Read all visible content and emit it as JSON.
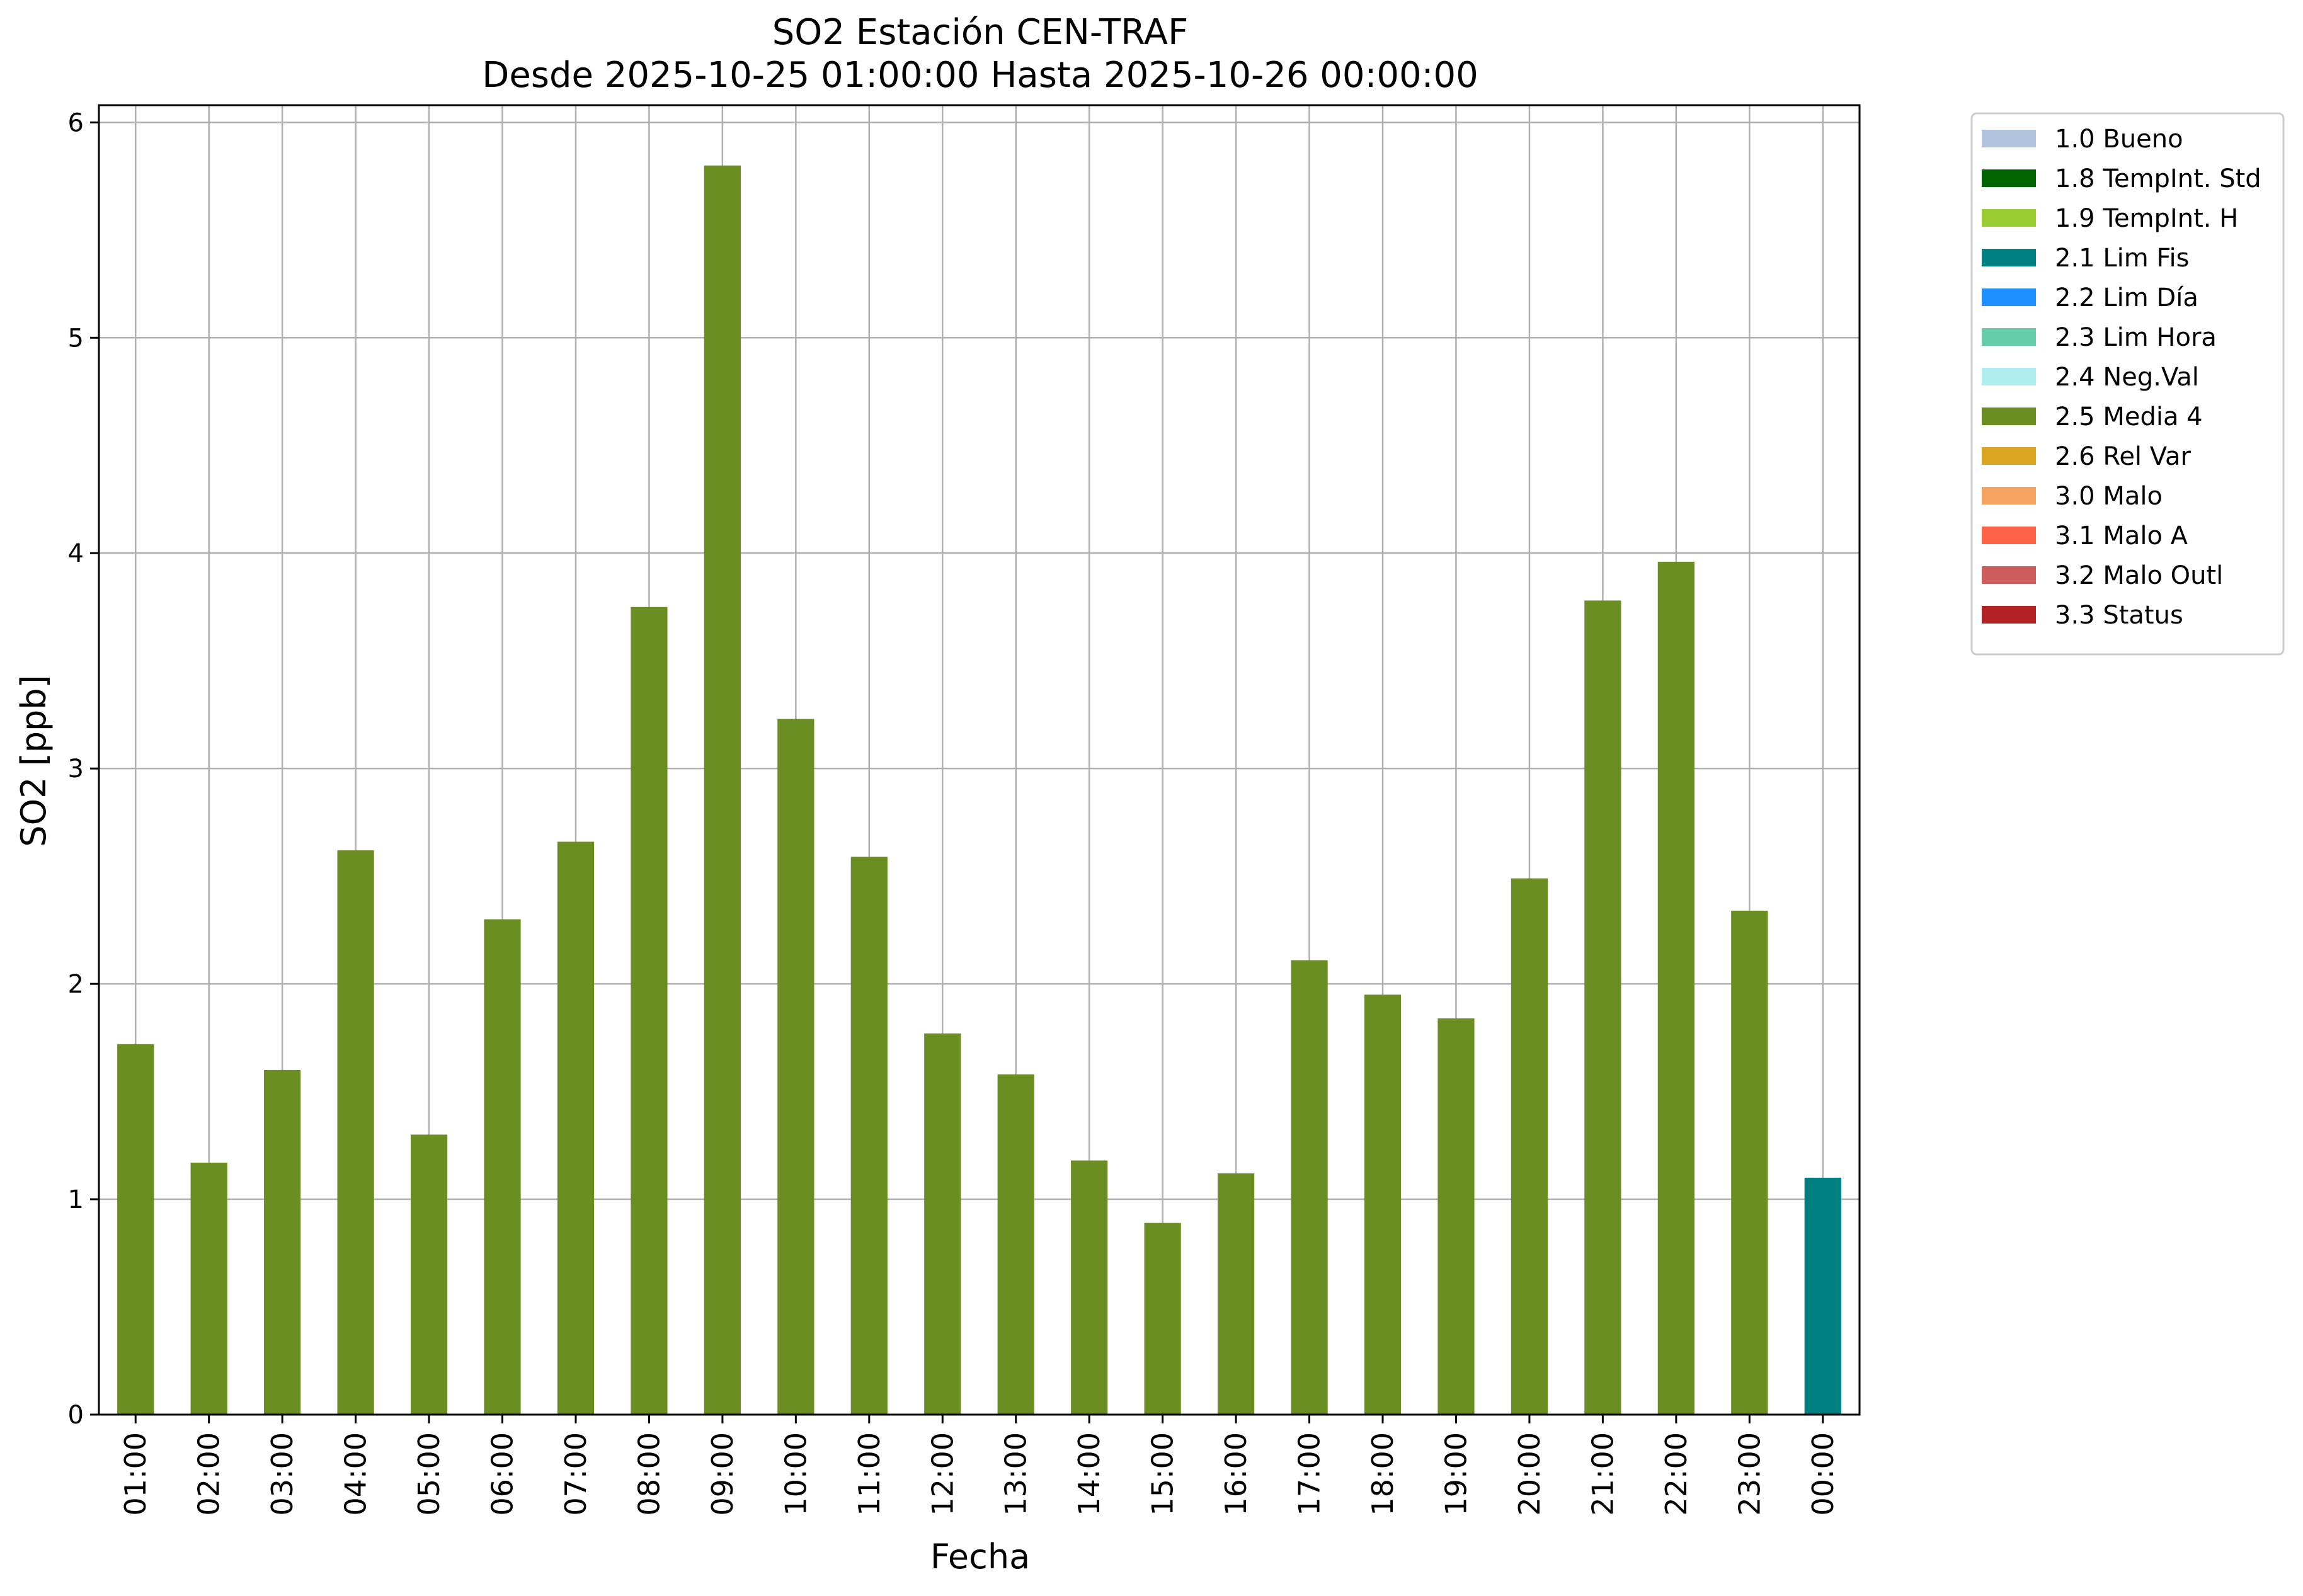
{
  "chart_data": {
    "type": "bar",
    "title": "SO2 Estación CEN-TRAF",
    "subtitle": "Desde 2025-10-25 01:00:00 Hasta 2025-10-26 00:00:00",
    "xlabel": "Fecha",
    "ylabel": "SO2 [ppb]",
    "ylim": [
      0,
      6.08
    ],
    "yticks": [
      0,
      1,
      2,
      3,
      4,
      5,
      6
    ],
    "grid": true,
    "legend_position": "outside-right-top",
    "categories": [
      "01:00",
      "02:00",
      "03:00",
      "04:00",
      "05:00",
      "06:00",
      "07:00",
      "08:00",
      "09:00",
      "10:00",
      "11:00",
      "12:00",
      "13:00",
      "14:00",
      "15:00",
      "16:00",
      "17:00",
      "18:00",
      "19:00",
      "20:00",
      "21:00",
      "22:00",
      "23:00",
      "00:00"
    ],
    "values": [
      1.72,
      1.17,
      1.6,
      2.62,
      1.3,
      2.3,
      2.66,
      3.75,
      5.8,
      3.23,
      2.59,
      1.77,
      1.58,
      1.18,
      0.89,
      1.12,
      2.11,
      1.95,
      1.84,
      2.49,
      3.78,
      3.96,
      2.34,
      1.1
    ],
    "flags": [
      "2.5 Media 4",
      "2.5 Media 4",
      "2.5 Media 4",
      "2.5 Media 4",
      "2.5 Media 4",
      "2.5 Media 4",
      "2.5 Media 4",
      "2.5 Media 4",
      "2.5 Media 4",
      "2.5 Media 4",
      "2.5 Media 4",
      "2.5 Media 4",
      "2.5 Media 4",
      "2.5 Media 4",
      "2.5 Media 4",
      "2.5 Media 4",
      "2.5 Media 4",
      "2.5 Media 4",
      "2.5 Media 4",
      "2.5 Media 4",
      "2.5 Media 4",
      "2.5 Media 4",
      "2.5 Media 4",
      "2.1 Lim Fis"
    ],
    "legend": [
      {
        "label": "1.0 Bueno",
        "color": "#b0c4de"
      },
      {
        "label": "1.8 TempInt. Std",
        "color": "#006400"
      },
      {
        "label": "1.9 TempInt. H",
        "color": "#9acd32"
      },
      {
        "label": "2.1 Lim Fis",
        "color": "#008080"
      },
      {
        "label": "2.2 Lim Día",
        "color": "#1e90ff"
      },
      {
        "label": "2.3 Lim Hora",
        "color": "#66cdaa"
      },
      {
        "label": "2.4 Neg.Val",
        "color": "#afeeee"
      },
      {
        "label": "2.5 Media 4",
        "color": "#6b8e23"
      },
      {
        "label": "2.6 Rel Var",
        "color": "#daa520"
      },
      {
        "label": "3.0 Malo",
        "color": "#f4a460"
      },
      {
        "label": "3.1 Malo A",
        "color": "#ff6347"
      },
      {
        "label": "3.2 Malo Outl",
        "color": "#cd5c5c"
      },
      {
        "label": "3.3 Status",
        "color": "#b22222"
      }
    ]
  }
}
